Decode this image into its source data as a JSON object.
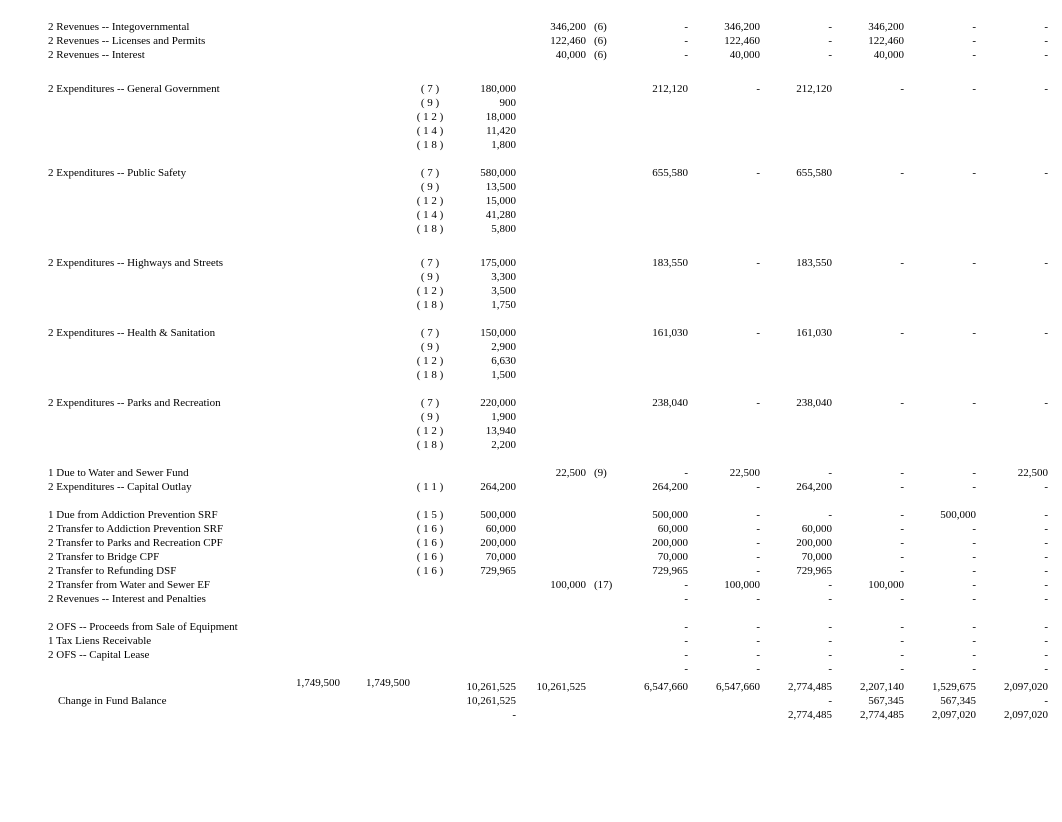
{
  "rows": [
    {
      "desc": "2 Revenues -- Integovernmental",
      "ref": "",
      "dr": "",
      "cr": "346,200",
      "crref": "(6)",
      "c1": "-",
      "c2": "346,200",
      "c3": "-",
      "c4": "346,200",
      "c5": "-",
      "c6": "-"
    },
    {
      "desc": "2 Revenues -- Licenses and Permits",
      "ref": "",
      "dr": "",
      "cr": "122,460",
      "crref": "(6)",
      "c1": "-",
      "c2": "122,460",
      "c3": "-",
      "c4": "122,460",
      "c5": "-",
      "c6": "-"
    },
    {
      "desc": "2 Revenues -- Interest",
      "ref": "",
      "dr": "",
      "cr": "40,000",
      "crref": "(6)",
      "c1": "-",
      "c2": "40,000",
      "c3": "-",
      "c4": "40,000",
      "c5": "-",
      "c6": "-"
    },
    {
      "spacer": true,
      "big": true
    },
    {
      "desc": "2 Expenditures -- General Government",
      "ref": "( 7 )",
      "dr": "180,000",
      "cr": "",
      "crref": "",
      "c1": "212,120",
      "c2": "-",
      "c3": "212,120",
      "c4": "-",
      "c5": "-",
      "c6": "-"
    },
    {
      "desc": "",
      "ref": "( 9 )",
      "dr": "900",
      "cr": "",
      "crref": ""
    },
    {
      "desc": "",
      "ref": "( 1 2 )",
      "dr": "18,000",
      "cr": "",
      "crref": ""
    },
    {
      "desc": "",
      "ref": "( 1 4 )",
      "dr": "11,420",
      "cr": "",
      "crref": ""
    },
    {
      "desc": "",
      "ref": "( 1 8 )",
      "dr": "1,800",
      "cr": "",
      "crref": ""
    },
    {
      "spacer": true
    },
    {
      "desc": "2 Expenditures -- Public Safety",
      "ref": "( 7 )",
      "dr": "580,000",
      "cr": "",
      "crref": "",
      "c1": "655,580",
      "c2": "-",
      "c3": "655,580",
      "c4": "-",
      "c5": "-",
      "c6": "-"
    },
    {
      "desc": "",
      "ref": "( 9 )",
      "dr": "13,500",
      "cr": "",
      "crref": ""
    },
    {
      "desc": "",
      "ref": "( 1 2 )",
      "dr": "15,000",
      "cr": "",
      "crref": ""
    },
    {
      "desc": "",
      "ref": "( 1 4 )",
      "dr": "41,280",
      "cr": "",
      "crref": ""
    },
    {
      "desc": "",
      "ref": "( 1 8 )",
      "dr": "5,800",
      "cr": "",
      "crref": ""
    },
    {
      "spacer": true,
      "big": true
    },
    {
      "desc": "2 Expenditures -- Highways and Streets",
      "ref": "( 7 )",
      "dr": "175,000",
      "cr": "",
      "crref": "",
      "c1": "183,550",
      "c2": "-",
      "c3": "183,550",
      "c4": "-",
      "c5": "-",
      "c6": "-"
    },
    {
      "desc": "",
      "ref": "( 9 )",
      "dr": "3,300",
      "cr": "",
      "crref": ""
    },
    {
      "desc": "",
      "ref": "( 1 2 )",
      "dr": "3,500",
      "cr": "",
      "crref": ""
    },
    {
      "desc": "",
      "ref": "( 1 8 )",
      "dr": "1,750",
      "cr": "",
      "crref": ""
    },
    {
      "spacer": true
    },
    {
      "desc": "2 Expenditures -- Health & Sanitation",
      "ref": "( 7 )",
      "dr": "150,000",
      "cr": "",
      "crref": "",
      "c1": "161,030",
      "c2": "-",
      "c3": "161,030",
      "c4": "-",
      "c5": "-",
      "c6": "-"
    },
    {
      "desc": "",
      "ref": "( 9 )",
      "dr": "2,900",
      "cr": "",
      "crref": ""
    },
    {
      "desc": "",
      "ref": "( 1 2 )",
      "dr": "6,630",
      "cr": "",
      "crref": ""
    },
    {
      "desc": "",
      "ref": "( 1 8 )",
      "dr": "1,500",
      "cr": "",
      "crref": ""
    },
    {
      "spacer": true
    },
    {
      "desc": "2 Expenditures -- Parks and Recreation",
      "ref": "( 7 )",
      "dr": "220,000",
      "cr": "",
      "crref": "",
      "c1": "238,040",
      "c2": "-",
      "c3": "238,040",
      "c4": "-",
      "c5": "-",
      "c6": "-"
    },
    {
      "desc": "",
      "ref": "( 9 )",
      "dr": "1,900",
      "cr": "",
      "crref": ""
    },
    {
      "desc": "",
      "ref": "( 1 2 )",
      "dr": "13,940",
      "cr": "",
      "crref": ""
    },
    {
      "desc": "",
      "ref": "( 1 8 )",
      "dr": "2,200",
      "cr": "",
      "crref": ""
    },
    {
      "spacer": true
    },
    {
      "desc": "1 Due to Water and Sewer Fund",
      "ref": "",
      "dr": "",
      "cr": "22,500",
      "crref": "(9)",
      "c1": "-",
      "c2": "22,500",
      "c3": "-",
      "c4": "-",
      "c5": "-",
      "c6": "22,500"
    },
    {
      "desc": "2 Expenditures -- Capital Outlay",
      "ref": "( 1 1 )",
      "dr": "264,200",
      "cr": "",
      "crref": "",
      "c1": "264,200",
      "c2": "-",
      "c3": "264,200",
      "c4": "-",
      "c5": "-",
      "c6": "-"
    },
    {
      "spacer": true
    },
    {
      "desc": "1 Due from Addiction Prevention SRF",
      "ref": "( 1 5 )",
      "dr": "500,000",
      "cr": "",
      "crref": "",
      "c1": "500,000",
      "c2": "-",
      "c3": "-",
      "c4": "-",
      "c5": "500,000",
      "c6": "-"
    },
    {
      "desc": "2 Transfer to Addiction Prevention SRF",
      "ref": "( 1 6 )",
      "dr": "60,000",
      "cr": "",
      "crref": "",
      "c1": "60,000",
      "c2": "-",
      "c3": "60,000",
      "c4": "-",
      "c5": "-",
      "c6": "-"
    },
    {
      "desc": "2 Transfer to Parks and Recreation CPF",
      "ref": "( 1 6 )",
      "dr": "200,000",
      "cr": "",
      "crref": "",
      "c1": "200,000",
      "c2": "-",
      "c3": "200,000",
      "c4": "-",
      "c5": "-",
      "c6": "-"
    },
    {
      "desc": "2 Transfer to Bridge CPF",
      "ref": "( 1 6 )",
      "dr": "70,000",
      "cr": "",
      "crref": "",
      "c1": "70,000",
      "c2": "-",
      "c3": "70,000",
      "c4": "-",
      "c5": "-",
      "c6": "-"
    },
    {
      "desc": "2 Transfer to Refunding DSF",
      "ref": "( 1 6 )",
      "dr": "729,965",
      "cr": "",
      "crref": "",
      "c1": "729,965",
      "c2": "-",
      "c3": "729,965",
      "c4": "-",
      "c5": "-",
      "c6": "-"
    },
    {
      "desc": "2 Transfer from Water and Sewer EF",
      "ref": "",
      "dr": "",
      "cr": "100,000",
      "crref": "(17)",
      "c1": "-",
      "c2": "100,000",
      "c3": "-",
      "c4": "100,000",
      "c5": "-",
      "c6": "-"
    },
    {
      "desc": "2 Revenues -- Interest and Penalties",
      "ref": "",
      "dr": "",
      "cr": "",
      "crref": "",
      "c1": "-",
      "c2": "-",
      "c3": "-",
      "c4": "-",
      "c5": "-",
      "c6": "-"
    },
    {
      "spacer": true
    },
    {
      "desc": "2 OFS -- Proceeds from Sale of Equipment",
      "ref": "",
      "dr": "",
      "cr": "",
      "crref": "",
      "c1": "-",
      "c2": "-",
      "c3": "-",
      "c4": "-",
      "c5": "-",
      "c6": "-"
    },
    {
      "desc": "1 Tax Liens Receivable",
      "ref": "",
      "dr": "",
      "cr": "",
      "crref": "",
      "c1": "-",
      "c2": "-",
      "c3": "-",
      "c4": "-",
      "c5": "-",
      "c6": "-"
    },
    {
      "desc": "2 OFS -- Capital Lease",
      "ref": "",
      "dr": "",
      "cr": "",
      "crref": "",
      "c1": "-",
      "c2": "-",
      "c3": "-",
      "c4": "-",
      "c5": "-",
      "c6": "-"
    },
    {
      "desc": "",
      "ref": "",
      "dr": "",
      "cr": "",
      "crref": "",
      "c1": "-",
      "c2": "-",
      "c3": "-",
      "c4": "-",
      "c5": "-",
      "c6": "-"
    },
    {
      "desc": "",
      "totA": "1,749,500",
      "totB": "1,749,500",
      "ref": "",
      "dr": "10,261,525",
      "cr": "10,261,525",
      "crref": "",
      "c1": "6,547,660",
      "c2": "6,547,660",
      "c3": "2,774,485",
      "c4": "2,207,140",
      "c5": "1,529,675",
      "c6": "2,097,020"
    },
    {
      "desc": "Change in Fund Balance",
      "indent": true,
      "ref": "",
      "dr": "10,261,525",
      "cr": "",
      "crref": "",
      "c1": "",
      "c2": "",
      "c3": "-",
      "c4": "567,345",
      "c5": "567,345",
      "c6": "-"
    },
    {
      "desc": "",
      "ref": "",
      "dr": "-",
      "cr": "",
      "crref": "",
      "c1": "",
      "c2": "",
      "c3": "2,774,485",
      "c4": "2,774,485",
      "c5": "2,097,020",
      "c6": "2,097,020"
    }
  ]
}
